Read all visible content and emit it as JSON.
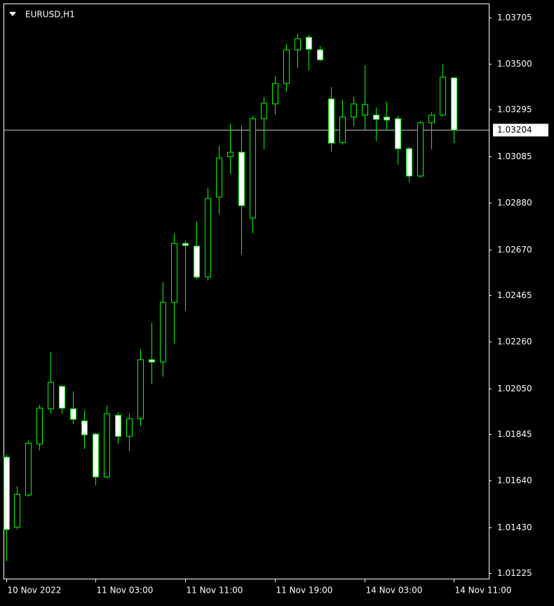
{
  "chart_data": {
    "type": "candlestick",
    "title": "EURUSD,H1",
    "categories": [
      "10 Nov 2022",
      null,
      null,
      null,
      null,
      null,
      null,
      null,
      "11 Nov 03:00",
      null,
      null,
      null,
      null,
      null,
      null,
      null,
      "11 Nov 11:00",
      null,
      null,
      null,
      null,
      null,
      null,
      null,
      "11 Nov 19:00",
      null,
      null,
      null,
      null,
      null,
      null,
      null,
      "14 Nov 03:00",
      null,
      null,
      null,
      null,
      null,
      null,
      null,
      "14 Nov 11:00"
    ],
    "open": [
      1.01743,
      1.0143,
      1.01574,
      1.01802,
      1.01959,
      1.02059,
      1.01959,
      1.01905,
      1.01846,
      1.01655,
      1.0193,
      1.01836,
      1.01915,
      1.02178,
      1.02168,
      1.02434,
      1.02697,
      1.02685,
      1.02547,
      1.02904,
      1.03085,
      1.03104,
      1.0281,
      1.03254,
      1.0332,
      1.03411,
      1.03561,
      1.03617,
      1.03561,
      1.03342,
      1.03148,
      1.03261,
      1.0327,
      1.0327,
      1.03261,
      1.03254,
      1.0312,
      1.02998,
      1.03236,
      1.0327,
      1.03436
    ],
    "high": [
      1.01755,
      1.01614,
      1.01818,
      1.01977,
      1.02212,
      1.02065,
      1.02037,
      1.01952,
      1.01852,
      1.01974,
      1.01943,
      1.01937,
      1.02225,
      1.02343,
      1.02525,
      1.02741,
      1.0271,
      1.02794,
      1.02944,
      1.03132,
      1.03232,
      1.03223,
      1.03267,
      1.03351,
      1.03445,
      1.03586,
      1.03633,
      1.03627,
      1.03577,
      1.03395,
      1.03339,
      1.03351,
      1.03492,
      1.03304,
      1.03329,
      1.03267,
      1.03129,
      1.03242,
      1.03283,
      1.03498,
      1.03439
    ],
    "low": [
      1.01279,
      1.0142,
      1.01567,
      1.01774,
      1.01937,
      1.01937,
      1.0189,
      1.0178,
      1.01617,
      1.01649,
      1.01802,
      1.01771,
      1.01883,
      1.02068,
      1.02102,
      1.0225,
      1.02397,
      1.02538,
      1.02531,
      1.02829,
      1.03007,
      1.02647,
      1.02741,
      1.03117,
      1.03273,
      1.03376,
      1.0348,
      1.0347,
      1.03511,
      1.03107,
      1.03138,
      1.0322,
      1.03204,
      1.03154,
      1.03204,
      1.03048,
      1.0297,
      1.02991,
      1.03117,
      1.03264,
      1.03145
    ],
    "close": [
      1.0142,
      1.01577,
      1.01805,
      1.01962,
      1.02077,
      1.01962,
      1.01912,
      1.01843,
      1.01655,
      1.01937,
      1.01836,
      1.01915,
      1.02178,
      1.02168,
      1.02434,
      1.02697,
      1.02688,
      1.02547,
      1.02897,
      1.03079,
      1.03104,
      1.02866,
      1.03254,
      1.03323,
      1.03411,
      1.03561,
      1.03611,
      1.03564,
      1.03517,
      1.03145,
      1.03261,
      1.0332,
      1.03317,
      1.03251,
      1.03248,
      1.0312,
      1.02998,
      1.03236,
      1.0327,
      1.03439,
      1.03204
    ],
    "ylim": [
      1.01201,
      1.03768
    ],
    "yticks": [
      1.03705,
      {
        "value": 1.035,
        "label": "1.03500"
      },
      1.03295,
      1.03085,
      {
        "value": 1.0288,
        "label": "1.02880"
      },
      {
        "value": 1.0267,
        "label": "1.02670"
      },
      1.02465,
      {
        "value": 1.0226,
        "label": "1.02260"
      },
      {
        "value": 1.0205,
        "label": "1.02050"
      },
      1.01845,
      {
        "value": 1.0164,
        "label": "1.01640"
      },
      {
        "value": 1.0143,
        "label": "1.01430"
      },
      1.01225
    ],
    "current_price": 1.03204,
    "outline_color": "#00ff00",
    "up_color": "#000000",
    "down_color": "#ffffff",
    "price_line_color": "#c0c0c0"
  }
}
